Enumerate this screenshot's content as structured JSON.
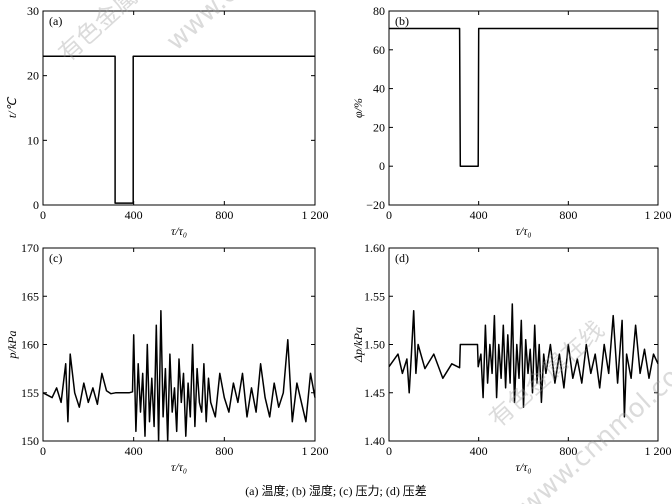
{
  "caption": "(a)  温度; (b)  湿度; (c)  压力; (d)  压差",
  "watermark": "www.cnnmol.com",
  "watermark_cn": "有色金属在线",
  "chart_data": [
    {
      "panel": "(a)",
      "type": "line",
      "xlabel": "τ/τ₀",
      "ylabel": "t/℃",
      "xlim": [
        0,
        1200
      ],
      "ylim": [
        0,
        30
      ],
      "xticks": [
        0,
        400,
        800,
        1200
      ],
      "xtick_labels": [
        "0",
        "400",
        "800",
        "1 200"
      ],
      "yticks": [
        0,
        10,
        20,
        30
      ],
      "ytick_labels": [
        "0",
        "10",
        "20",
        "30"
      ],
      "x": [
        0,
        318,
        318,
        398,
        398,
        1200
      ],
      "y": [
        23,
        23,
        0.3,
        0.3,
        23,
        23
      ]
    },
    {
      "panel": "(b)",
      "type": "line",
      "xlabel": "τ/τ₀",
      "ylabel": "φ/%",
      "xlim": [
        0,
        1200
      ],
      "ylim": [
        -20,
        80
      ],
      "xticks": [
        0,
        400,
        800,
        1200
      ],
      "xtick_labels": [
        "0",
        "400",
        "800",
        "1 200"
      ],
      "yticks": [
        -20,
        0,
        20,
        40,
        60,
        80
      ],
      "ytick_labels": [
        "−20",
        "0",
        "20",
        "40",
        "60",
        "80"
      ],
      "x": [
        0,
        315,
        318,
        398,
        400,
        1200
      ],
      "y": [
        71,
        71,
        0,
        0,
        71,
        71
      ]
    },
    {
      "panel": "(c)",
      "type": "line",
      "xlabel": "τ/τ₀",
      "ylabel": "p/kPa",
      "xlim": [
        0,
        1200
      ],
      "ylim": [
        150,
        170
      ],
      "xticks": [
        0,
        400,
        800,
        1200
      ],
      "xtick_labels": [
        "0",
        "400",
        "800",
        "1 200"
      ],
      "yticks": [
        150,
        155,
        160,
        165,
        170
      ],
      "ytick_labels": [
        "150",
        "155",
        "160",
        "165",
        "170"
      ],
      "x": [
        0,
        40,
        60,
        80,
        100,
        110,
        120,
        140,
        160,
        180,
        200,
        220,
        240,
        260,
        280,
        300,
        320,
        340,
        360,
        380,
        395,
        400,
        410,
        420,
        430,
        440,
        450,
        460,
        470,
        480,
        490,
        500,
        510,
        520,
        530,
        540,
        550,
        560,
        570,
        580,
        590,
        600,
        610,
        620,
        630,
        640,
        650,
        660,
        670,
        680,
        690,
        700,
        710,
        720,
        730,
        740,
        760,
        780,
        800,
        820,
        840,
        860,
        880,
        900,
        920,
        940,
        960,
        980,
        1000,
        1020,
        1040,
        1060,
        1080,
        1100,
        1120,
        1140,
        1160,
        1180,
        1200
      ],
      "y": [
        155,
        154.5,
        155.5,
        154,
        158,
        152,
        159,
        155,
        153.5,
        156,
        154,
        155.5,
        153.8,
        157,
        155.2,
        154.9,
        155,
        155,
        155,
        155,
        155.1,
        161,
        151,
        158,
        153,
        157,
        150.5,
        160,
        152,
        156.5,
        151.5,
        162,
        150,
        163.5,
        152.5,
        157.5,
        150,
        159,
        153,
        155.5,
        151,
        158.5,
        154,
        157,
        150.5,
        156,
        152.5,
        160,
        151.5,
        157.5,
        154,
        153,
        158,
        152,
        156.5,
        154,
        152.5,
        157,
        154.5,
        153,
        156,
        154,
        157,
        152.5,
        155.5,
        153,
        158,
        154.5,
        152.5,
        156,
        153.5,
        155,
        160.5,
        152,
        156,
        154,
        152,
        157,
        154.5
      ]
    },
    {
      "panel": "(d)",
      "type": "line",
      "xlabel": "τ/τ₀",
      "ylabel": "Δp/kPa",
      "xlim": [
        0,
        1200
      ],
      "ylim": [
        1.4,
        1.6
      ],
      "xticks": [
        0,
        400,
        800,
        1200
      ],
      "xtick_labels": [
        "0",
        "400",
        "800",
        "1 200"
      ],
      "yticks": [
        1.4,
        1.45,
        1.5,
        1.55,
        1.6
      ],
      "ytick_labels": [
        "1.40",
        "1.45",
        "1.50",
        "1.55",
        "1.60"
      ],
      "x": [
        0,
        40,
        60,
        80,
        90,
        100,
        110,
        120,
        130,
        160,
        200,
        240,
        280,
        315,
        318,
        395,
        398,
        410,
        420,
        430,
        440,
        450,
        460,
        470,
        480,
        490,
        500,
        510,
        520,
        530,
        540,
        550,
        560,
        570,
        580,
        590,
        600,
        610,
        620,
        630,
        640,
        650,
        660,
        670,
        680,
        690,
        700,
        720,
        740,
        760,
        780,
        800,
        820,
        840,
        860,
        880,
        900,
        920,
        940,
        960,
        980,
        1000,
        1020,
        1040,
        1050,
        1060,
        1080,
        1100,
        1120,
        1140,
        1160,
        1180,
        1200
      ],
      "y": [
        1.477,
        1.49,
        1.47,
        1.485,
        1.45,
        1.49,
        1.535,
        1.47,
        1.5,
        1.475,
        1.49,
        1.465,
        1.48,
        1.476,
        1.5,
        1.5,
        1.477,
        1.49,
        1.445,
        1.52,
        1.46,
        1.5,
        1.47,
        1.53,
        1.445,
        1.5,
        1.465,
        1.52,
        1.455,
        1.51,
        1.46,
        1.542,
        1.44,
        1.5,
        1.465,
        1.525,
        1.435,
        1.505,
        1.47,
        1.495,
        1.45,
        1.52,
        1.46,
        1.5,
        1.44,
        1.49,
        1.47,
        1.5,
        1.46,
        1.49,
        1.455,
        1.5,
        1.465,
        1.485,
        1.46,
        1.5,
        1.47,
        1.49,
        1.455,
        1.5,
        1.47,
        1.53,
        1.46,
        1.525,
        1.425,
        1.49,
        1.465,
        1.52,
        1.47,
        1.495,
        1.465,
        1.49,
        1.48
      ]
    }
  ]
}
